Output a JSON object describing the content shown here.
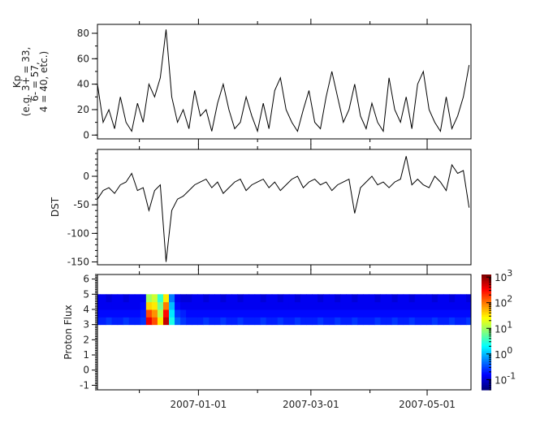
{
  "chart_data": [
    {
      "type": "line",
      "panel": "kp",
      "ylabel_lines": [
        "Kp",
        "(e.g. 3+ = 33,",
        "6- = 57,",
        "4 = 40, etc.)"
      ],
      "ylim": [
        -3,
        87
      ],
      "yticks": [
        0,
        20,
        40,
        60,
        80
      ],
      "color": "#000000"
    },
    {
      "type": "line",
      "panel": "dst",
      "ylabel_lines": [
        "DST"
      ],
      "ylim": [
        -155,
        47
      ],
      "yticks": [
        0,
        -50,
        -100,
        -150
      ],
      "color": "#000000"
    },
    {
      "type": "heatmap",
      "panel": "flux",
      "ylabel_lines": [
        "Proton Flux"
      ],
      "ylim": [
        -1.3,
        6.3
      ],
      "yticks": [
        -1,
        0,
        1,
        2,
        3,
        4,
        5,
        6
      ],
      "channel_edges": [
        3,
        3.5,
        4,
        4.5,
        5
      ],
      "colorscale": "jet",
      "color_range_log10": [
        -1.4,
        3.1
      ],
      "colorbar_ticks": [
        {
          "base": "10",
          "exp": "3",
          "value": 3
        },
        {
          "base": "10",
          "exp": "2",
          "value": 2
        },
        {
          "base": "10",
          "exp": "1",
          "value": 1
        },
        {
          "base": "10",
          "exp": "0",
          "value": 0
        },
        {
          "base": "10",
          "exp": "-1",
          "value": -1
        }
      ]
    }
  ],
  "x_axis": {
    "range": [
      "2006-11-09",
      "2007-05-24"
    ],
    "tick_dates": [
      "2006-12-01",
      "2007-01-01",
      "2007-02-01",
      "2007-03-01",
      "2007-04-01",
      "2007-05-01"
    ],
    "labels": [
      {
        "date": "2007-01-01",
        "text": "2007-01-01"
      },
      {
        "date": "2007-03-01",
        "text": "2007-03-01"
      },
      {
        "date": "2007-05-01",
        "text": "2007-05-01"
      }
    ]
  },
  "series": {
    "dates": [
      "2006-11-09",
      "2006-11-12",
      "2006-11-15",
      "2006-11-18",
      "2006-11-21",
      "2006-11-24",
      "2006-11-27",
      "2006-11-30",
      "2006-12-03",
      "2006-12-06",
      "2006-12-09",
      "2006-12-12",
      "2006-12-15",
      "2006-12-18",
      "2006-12-21",
      "2006-12-24",
      "2006-12-27",
      "2006-12-30",
      "2007-01-02",
      "2007-01-05",
      "2007-01-08",
      "2007-01-11",
      "2007-01-14",
      "2007-01-17",
      "2007-01-20",
      "2007-01-23",
      "2007-01-26",
      "2007-01-29",
      "2007-02-01",
      "2007-02-04",
      "2007-02-07",
      "2007-02-10",
      "2007-02-13",
      "2007-02-16",
      "2007-02-19",
      "2007-02-22",
      "2007-02-25",
      "2007-02-28",
      "2007-03-03",
      "2007-03-06",
      "2007-03-09",
      "2007-03-12",
      "2007-03-15",
      "2007-03-18",
      "2007-03-21",
      "2007-03-24",
      "2007-03-27",
      "2007-03-30",
      "2007-04-02",
      "2007-04-05",
      "2007-04-08",
      "2007-04-11",
      "2007-04-14",
      "2007-04-17",
      "2007-04-20",
      "2007-04-23",
      "2007-04-26",
      "2007-04-29",
      "2007-05-02",
      "2007-05-05",
      "2007-05-08",
      "2007-05-11",
      "2007-05-14",
      "2007-05-17",
      "2007-05-20",
      "2007-05-23"
    ],
    "kp": [
      40,
      10,
      20,
      5,
      30,
      10,
      3,
      25,
      10,
      40,
      30,
      45,
      83,
      30,
      10,
      20,
      5,
      35,
      15,
      20,
      3,
      25,
      40,
      20,
      5,
      10,
      30,
      15,
      3,
      25,
      5,
      35,
      45,
      20,
      10,
      3,
      20,
      35,
      10,
      5,
      30,
      50,
      30,
      10,
      20,
      40,
      15,
      5,
      25,
      10,
      3,
      45,
      20,
      10,
      30,
      5,
      40,
      50,
      20,
      10,
      3,
      30,
      5,
      15,
      30,
      55
    ],
    "dst": [
      -40,
      -25,
      -20,
      -30,
      -15,
      -10,
      5,
      -25,
      -20,
      -60,
      -25,
      -15,
      -150,
      -60,
      -40,
      -35,
      -25,
      -15,
      -10,
      -5,
      -20,
      -10,
      -30,
      -20,
      -10,
      -5,
      -25,
      -15,
      -10,
      -5,
      -20,
      -10,
      -25,
      -15,
      -5,
      0,
      -20,
      -10,
      -5,
      -15,
      -10,
      -25,
      -15,
      -10,
      -5,
      -65,
      -20,
      -10,
      0,
      -15,
      -10,
      -20,
      -10,
      -5,
      35,
      -15,
      -5,
      -15,
      -20,
      0,
      -10,
      -25,
      20,
      5,
      10,
      -55
    ],
    "flux_log10": [
      [
        -0.7,
        -0.8,
        -0.9,
        -0.9
      ],
      [
        -0.7,
        -0.8,
        -0.9,
        -0.9
      ],
      [
        -0.6,
        -0.8,
        -0.9,
        -1.0
      ],
      [
        -0.7,
        -0.8,
        -0.9,
        -0.9
      ],
      [
        -0.7,
        -0.8,
        -0.9,
        -0.9
      ],
      [
        -0.6,
        -0.8,
        -0.9,
        -1.0
      ],
      [
        -0.7,
        -0.8,
        -0.9,
        -0.9
      ],
      [
        -0.7,
        -0.8,
        -0.9,
        -0.9
      ],
      [
        -0.6,
        -0.7,
        -0.8,
        -0.9
      ],
      [
        2.6,
        2.2,
        1.6,
        1.0
      ],
      [
        2.2,
        1.9,
        1.5,
        1.2
      ],
      [
        1.5,
        1.1,
        0.8,
        0.5
      ],
      [
        2.8,
        2.5,
        2.0,
        1.5
      ],
      [
        0.4,
        0.2,
        0.0,
        -0.3
      ],
      [
        -0.4,
        -0.6,
        -0.8,
        -0.9
      ],
      [
        -0.6,
        -0.7,
        -0.9,
        -1.0
      ],
      [
        -0.7,
        -0.8,
        -0.9,
        -1.0
      ],
      [
        -0.7,
        -0.8,
        -0.9,
        -0.9
      ],
      [
        -0.7,
        -0.8,
        -0.9,
        -0.9
      ],
      [
        -0.6,
        -0.8,
        -0.9,
        -1.0
      ],
      [
        -0.7,
        -0.8,
        -0.9,
        -0.9
      ],
      [
        -0.7,
        -0.8,
        -0.9,
        -0.9
      ],
      [
        -0.6,
        -0.8,
        -0.9,
        -1.0
      ],
      [
        -0.7,
        -0.8,
        -0.9,
        -0.9
      ],
      [
        -0.7,
        -0.8,
        -0.9,
        -0.9
      ],
      [
        -0.6,
        -0.8,
        -0.9,
        -1.0
      ],
      [
        -0.7,
        -0.8,
        -0.9,
        -0.9
      ],
      [
        -0.7,
        -0.8,
        -0.9,
        -0.9
      ],
      [
        -0.7,
        -0.8,
        -0.9,
        -0.9
      ],
      [
        -0.6,
        -0.8,
        -0.9,
        -1.0
      ],
      [
        -0.7,
        -0.8,
        -0.9,
        -0.9
      ],
      [
        -0.7,
        -0.8,
        -0.9,
        -0.9
      ],
      [
        -0.6,
        -0.8,
        -0.9,
        -1.0
      ],
      [
        -0.7,
        -0.8,
        -0.9,
        -0.9
      ],
      [
        -0.7,
        -0.8,
        -0.9,
        -0.9
      ],
      [
        -0.6,
        -0.8,
        -0.9,
        -1.0
      ],
      [
        -0.7,
        -0.8,
        -0.9,
        -0.9
      ],
      [
        -0.7,
        -0.8,
        -0.9,
        -0.9
      ],
      [
        -0.7,
        -0.8,
        -0.9,
        -0.9
      ],
      [
        -0.6,
        -0.8,
        -0.9,
        -1.0
      ],
      [
        -0.7,
        -0.8,
        -0.9,
        -0.9
      ],
      [
        -0.7,
        -0.8,
        -0.9,
        -0.9
      ],
      [
        -0.6,
        -0.8,
        -0.9,
        -1.0
      ],
      [
        -0.7,
        -0.8,
        -0.9,
        -0.9
      ],
      [
        -0.7,
        -0.8,
        -0.9,
        -0.9
      ],
      [
        -0.6,
        -0.8,
        -0.9,
        -1.0
      ],
      [
        -0.7,
        -0.8,
        -0.9,
        -0.9
      ],
      [
        -0.7,
        -0.8,
        -0.9,
        -0.9
      ],
      [
        -0.7,
        -0.8,
        -0.9,
        -0.9
      ],
      [
        -0.6,
        -0.8,
        -0.9,
        -1.0
      ],
      [
        -0.7,
        -0.8,
        -0.9,
        -0.9
      ],
      [
        -0.7,
        -0.8,
        -0.9,
        -0.9
      ],
      [
        -0.6,
        -0.8,
        -0.9,
        -1.0
      ],
      [
        -0.7,
        -0.8,
        -0.9,
        -0.9
      ],
      [
        -0.7,
        -0.8,
        -0.9,
        -0.9
      ],
      [
        -0.6,
        -0.8,
        -0.9,
        -1.0
      ],
      [
        -0.7,
        -0.8,
        -0.9,
        -0.9
      ],
      [
        -0.7,
        -0.8,
        -0.9,
        -0.9
      ],
      [
        -0.7,
        -0.8,
        -0.9,
        -0.9
      ],
      [
        -0.6,
        -0.8,
        -0.9,
        -1.0
      ],
      [
        -0.7,
        -0.8,
        -0.9,
        -0.9
      ],
      [
        -0.7,
        -0.8,
        -0.9,
        -0.9
      ],
      [
        -0.6,
        -0.8,
        -0.9,
        -1.0
      ],
      [
        -0.7,
        -0.8,
        -0.9,
        -0.9
      ],
      [
        -0.7,
        -0.8,
        -0.9,
        -0.9
      ],
      [
        -0.6,
        -0.8,
        -0.9,
        -1.0
      ]
    ]
  }
}
